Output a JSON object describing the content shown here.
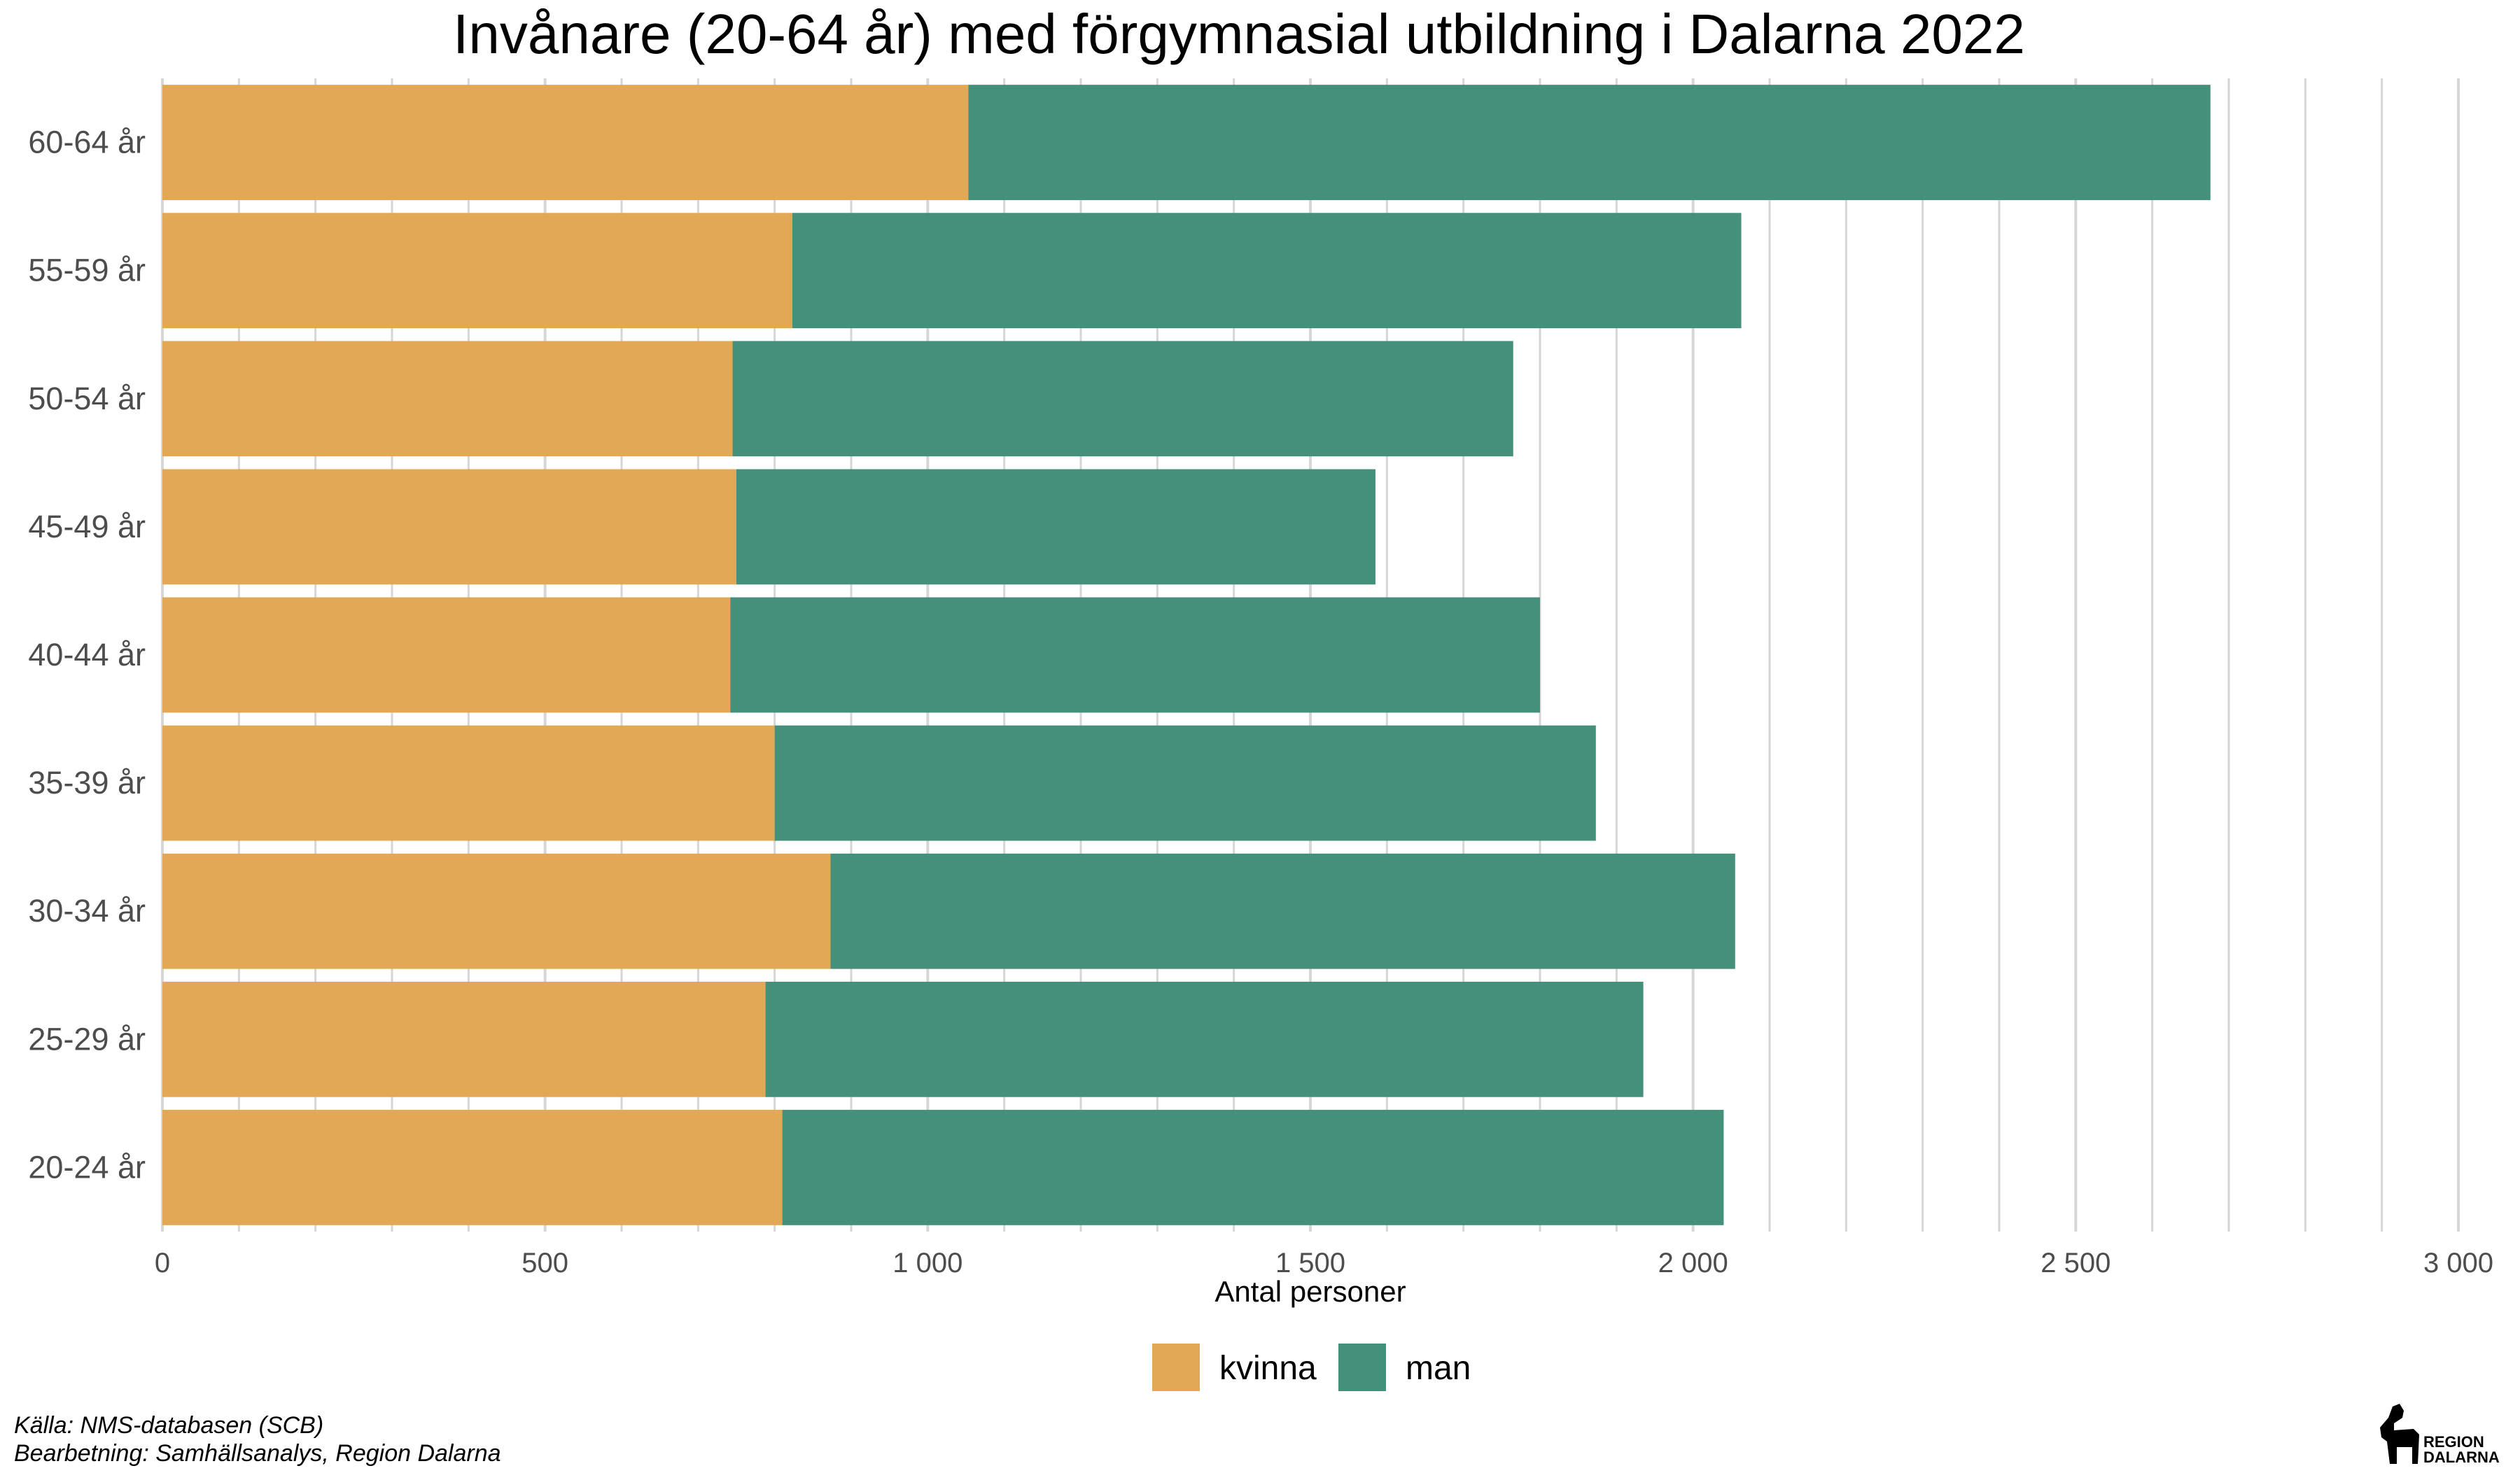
{
  "chart_data": {
    "type": "bar",
    "orientation": "horizontal",
    "stacked": true,
    "title": "Invånare (20-64 år) med förgymnasial utbildning i Dalarna 2022",
    "xlabel": "Antal personer",
    "ylabel": "",
    "xlim": [
      0,
      3000
    ],
    "xticks": [
      0,
      500,
      1000,
      1500,
      2000,
      2500,
      3000
    ],
    "xtick_labels": [
      "0",
      "500",
      "1 000",
      "1 500",
      "2 000",
      "2 500",
      "3 000"
    ],
    "categories": [
      "60-64 år",
      "55-59 år",
      "50-54 år",
      "45-49 år",
      "40-44 år",
      "35-39 år",
      "30-34 år",
      "25-29 år",
      "20-24 år"
    ],
    "series": [
      {
        "name": "kvinna",
        "color": "#E2A856",
        "values": [
          1053,
          823,
          745,
          750,
          742,
          800,
          873,
          788,
          810
        ]
      },
      {
        "name": "man",
        "color": "#45907A",
        "values": [
          1623,
          1240,
          1020,
          835,
          1058,
          1073,
          1182,
          1147,
          1230
        ]
      }
    ],
    "grid": true,
    "legend_position": "bottom"
  },
  "caption": {
    "line1": "Källa: NMS-databasen (SCB)",
    "line2": "Bearbetning: Samhällsanalys, Region Dalarna"
  },
  "logo": {
    "line1": "REGION",
    "line2": "DALARNA",
    "icon": "dala-horse-icon"
  }
}
